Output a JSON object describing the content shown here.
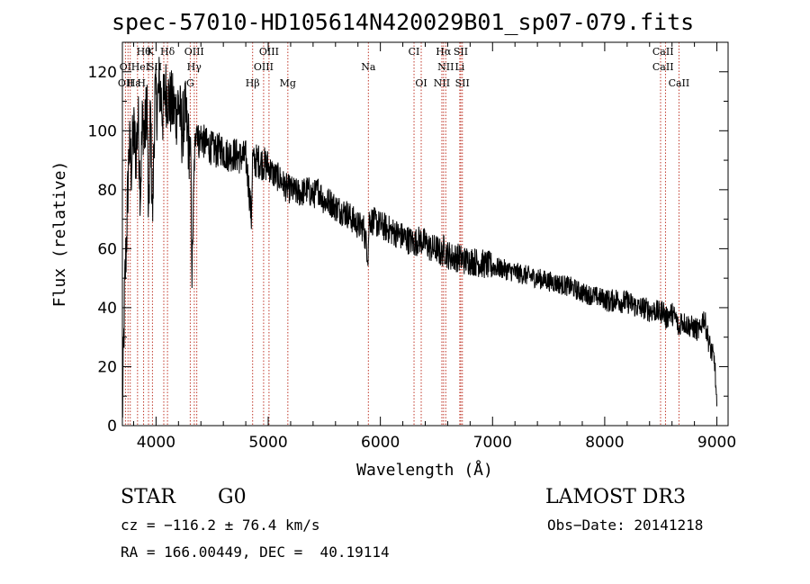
{
  "chart_data": {
    "type": "line",
    "title": "spec-57010-HD105614N420029B01_sp07-079.fits",
    "xlabel": "Wavelength (Å)",
    "ylabel": "Flux (relative)",
    "xlim": [
      3700,
      9100
    ],
    "ylim": [
      0,
      130
    ],
    "xticks": [
      4000,
      5000,
      6000,
      7000,
      8000,
      9000
    ],
    "yticks": [
      0,
      20,
      40,
      60,
      80,
      100,
      120
    ],
    "series": [
      {
        "name": "flux",
        "x": [
          3700,
          3720,
          3740,
          3760,
          3780,
          3800,
          3820,
          3840,
          3860,
          3880,
          3900,
          3920,
          3933,
          3950,
          3968,
          3990,
          4010,
          4030,
          4060,
          4080,
          4102,
          4120,
          4150,
          4180,
          4200,
          4230,
          4260,
          4290,
          4310,
          4320,
          4340,
          4360,
          4380,
          4400,
          4430,
          4460,
          4500,
          4540,
          4580,
          4620,
          4660,
          4700,
          4750,
          4800,
          4830,
          4850,
          4861,
          4870,
          4900,
          4950,
          5000,
          5050,
          5100,
          5150,
          5200,
          5250,
          5300,
          5350,
          5400,
          5450,
          5500,
          5550,
          5600,
          5650,
          5700,
          5750,
          5800,
          5850,
          5890,
          5900,
          5950,
          6000,
          6050,
          6100,
          6150,
          6200,
          6250,
          6300,
          6350,
          6400,
          6450,
          6500,
          6550,
          6563,
          6580,
          6600,
          6650,
          6700,
          6750,
          6800,
          6900,
          7000,
          7100,
          7200,
          7300,
          7400,
          7500,
          7600,
          7700,
          7800,
          7900,
          8000,
          8050,
          8100,
          8150,
          8200,
          8250,
          8300,
          8350,
          8400,
          8450,
          8500,
          8520,
          8542,
          8560,
          8580,
          8600,
          8640,
          8662,
          8680,
          8700,
          8750,
          8800,
          8850,
          8880,
          8900,
          8930,
          8960,
          8980,
          9000
        ],
        "values": [
          2,
          45,
          68,
          95,
          88,
          100,
          92,
          104,
          80,
          105,
          98,
          112,
          65,
          108,
          70,
          112,
          108,
          116,
          106,
          114,
          112,
          110,
          108,
          106,
          110,
          100,
          106,
          96,
          92,
          50,
          88,
          104,
          96,
          98,
          96,
          95,
          94,
          93,
          94,
          92,
          92,
          92,
          91,
          91,
          80,
          70,
          92,
          89,
          90,
          89,
          88,
          85,
          84,
          81,
          80,
          79,
          79,
          80,
          78,
          80,
          76,
          76,
          74,
          73,
          72,
          70,
          68,
          67,
          58,
          70,
          69,
          68,
          67,
          66,
          65,
          64,
          63,
          62,
          63,
          62,
          60,
          60,
          58,
          60,
          59,
          58,
          57,
          57,
          56,
          56,
          55,
          54,
          53,
          52,
          51,
          50,
          49,
          48,
          47,
          45,
          44,
          43,
          42,
          43,
          42,
          42,
          41,
          40,
          40,
          39,
          39,
          38,
          40,
          36,
          37,
          38,
          38,
          36,
          32,
          36,
          35,
          34,
          33,
          32,
          37,
          34,
          28,
          24,
          22,
          5
        ]
      }
    ],
    "lines_top": [
      "Hθ",
      "K",
      "Hδ",
      "OIII",
      "OIII",
      "CI",
      "Hα",
      "SII",
      "CaII"
    ],
    "lines_mid": [
      "OI",
      "HeI",
      "SII",
      "Hγ",
      "OIII",
      "Na",
      "NII",
      "Li",
      "CaII"
    ],
    "lines_bot": [
      "OII",
      "Hε",
      "H",
      "G",
      "Hβ",
      "Mg",
      "OI",
      "NII",
      "SII",
      "CaII"
    ],
    "line_wavelengths": [
      3727,
      3750,
      3770,
      3835,
      3889,
      3933,
      3968,
      4069,
      4102,
      4305,
      4341,
      4363,
      4861,
      4959,
      5007,
      5175,
      5893,
      6300,
      6364,
      6548,
      6563,
      6583,
      6708,
      6717,
      6731,
      8498,
      8542,
      8662
    ]
  },
  "info": {
    "object_class": "STAR",
    "subclass": "G0",
    "survey": "LAMOST DR3",
    "cz": "cz = −116.2 ± 76.4 km/s",
    "obs_date": "Obs−Date: 20141218",
    "coords": "RA = 166.00449, DEC =  40.19114"
  }
}
